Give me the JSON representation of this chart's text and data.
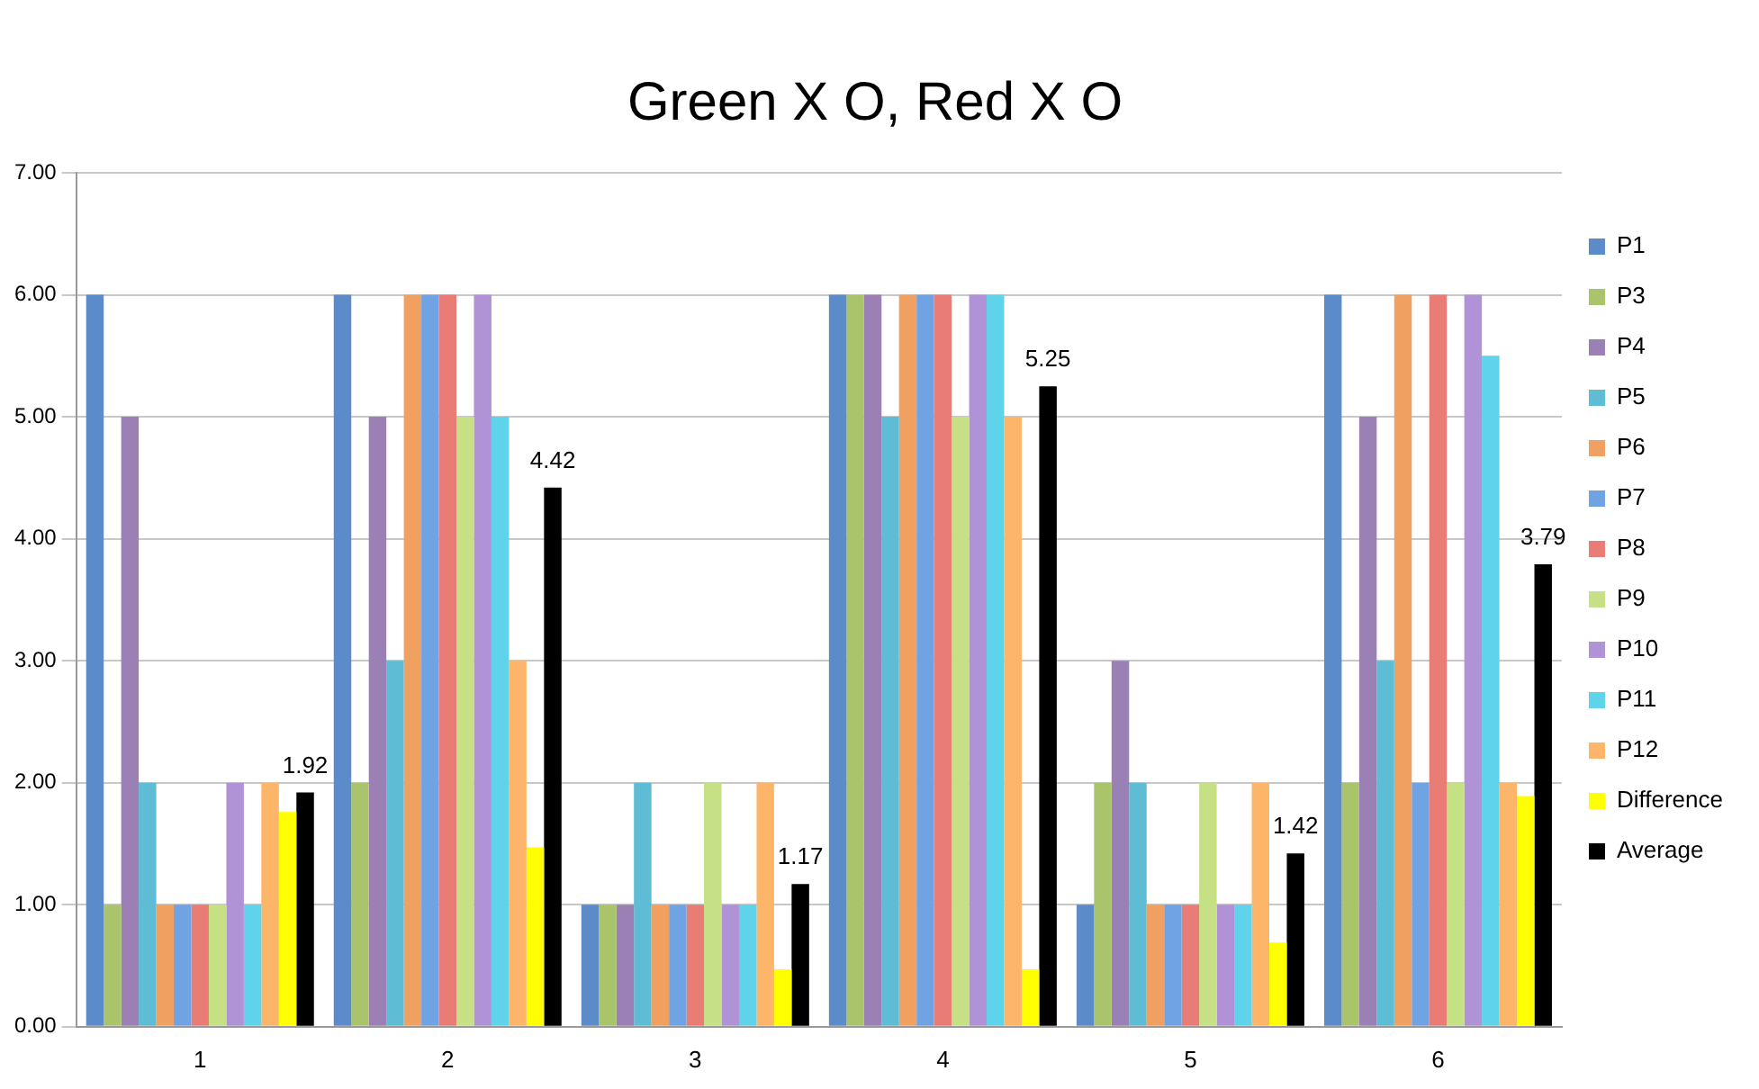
{
  "chart_data": {
    "type": "bar",
    "title": "Green X O, Red X O",
    "categories": [
      "1",
      "2",
      "3",
      "4",
      "5",
      "6"
    ],
    "ylim": [
      0,
      7
    ],
    "yticks": [
      {
        "value": 0,
        "label": "0.00"
      },
      {
        "value": 1,
        "label": "1.00"
      },
      {
        "value": 2,
        "label": "2.00"
      },
      {
        "value": 3,
        "label": "3.00"
      },
      {
        "value": 4,
        "label": "4.00"
      },
      {
        "value": 5,
        "label": "5.00"
      },
      {
        "value": 6,
        "label": "6.00"
      },
      {
        "value": 7,
        "label": "7.00"
      }
    ],
    "grid": "y",
    "legend": "right",
    "series": [
      {
        "name": "P1",
        "color": "#5b8bc9",
        "values": [
          6,
          6,
          1,
          6,
          1,
          6
        ]
      },
      {
        "name": "P3",
        "color": "#a9c46a",
        "values": [
          1,
          2,
          1,
          6,
          2,
          2
        ]
      },
      {
        "name": "P4",
        "color": "#9a80b4",
        "values": [
          5,
          5,
          1,
          6,
          3,
          5
        ]
      },
      {
        "name": "P5",
        "color": "#5ebcd4",
        "values": [
          2,
          3,
          2,
          5,
          2,
          3
        ]
      },
      {
        "name": "P6",
        "color": "#f0a060",
        "values": [
          1,
          6,
          1,
          6,
          1,
          6
        ]
      },
      {
        "name": "P7",
        "color": "#6fa3e3",
        "values": [
          1,
          6,
          1,
          6,
          1,
          2
        ]
      },
      {
        "name": "P8",
        "color": "#ea7c76",
        "values": [
          1,
          6,
          1,
          6,
          1,
          6
        ]
      },
      {
        "name": "P9",
        "color": "#c5e085",
        "values": [
          1,
          5,
          2,
          5,
          2,
          2
        ]
      },
      {
        "name": "P10",
        "color": "#b092d6",
        "values": [
          2,
          6,
          1,
          6,
          1,
          6
        ]
      },
      {
        "name": "P11",
        "color": "#5fd3ea",
        "values": [
          1,
          5,
          1,
          6,
          1,
          5.5
        ]
      },
      {
        "name": "P12",
        "color": "#fdb56a",
        "values": [
          2,
          3,
          2,
          5,
          2,
          2
        ]
      },
      {
        "name": "Difference",
        "color": "#ffff00",
        "values": [
          1.76,
          1.47,
          0.47,
          0.47,
          0.69,
          1.89
        ]
      },
      {
        "name": "Average",
        "color": "#000000",
        "values": [
          1.92,
          4.42,
          1.17,
          5.25,
          1.42,
          3.79
        ],
        "value_labels": [
          "1.92",
          "4.42",
          "1.17",
          "5.25",
          "1.42",
          "3.79"
        ]
      }
    ]
  }
}
